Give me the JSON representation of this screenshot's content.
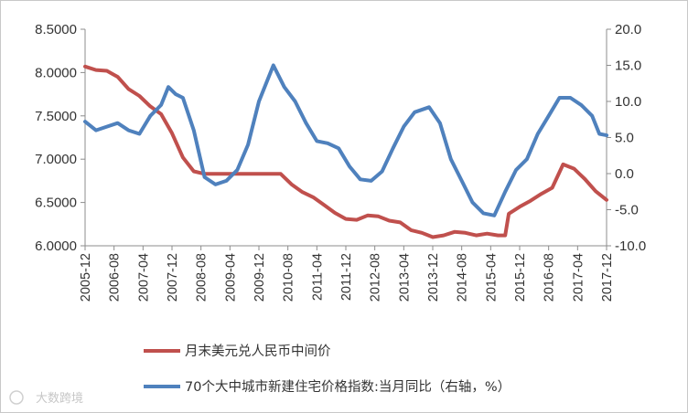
{
  "chart_data": {
    "type": "line",
    "title": "",
    "left_axis": {
      "ylim": [
        6.0,
        8.5
      ],
      "ticks": [
        "6.0000",
        "6.5000",
        "7.0000",
        "7.5000",
        "8.0000",
        "8.5000"
      ]
    },
    "right_axis": {
      "ylim": [
        -10.0,
        20.0
      ],
      "ticks": [
        "-10.0",
        "-5.0",
        "0.0",
        "5.0",
        "10.0",
        "15.0",
        "20.0"
      ]
    },
    "x_start": "2005-12",
    "x_end": "2017-12",
    "x_ticks": [
      "2005-12",
      "2006-08",
      "2007-04",
      "2007-12",
      "2008-08",
      "2009-04",
      "2009-12",
      "2010-08",
      "2011-04",
      "2011-12",
      "2012-08",
      "2013-04",
      "2013-12",
      "2014-08",
      "2015-04",
      "2015-12",
      "2016-08",
      "2017-04",
      "2017-12"
    ],
    "grid": false,
    "legend_position": "bottom",
    "series": [
      {
        "name": "月末美元兑人民币中间价",
        "axis": "left",
        "color": "#c0504d",
        "points": [
          [
            "2005-12",
            8.07
          ],
          [
            "2006-03",
            8.03
          ],
          [
            "2006-06",
            8.02
          ],
          [
            "2006-09",
            7.95
          ],
          [
            "2006-12",
            7.81
          ],
          [
            "2007-03",
            7.73
          ],
          [
            "2007-06",
            7.61
          ],
          [
            "2007-09",
            7.52
          ],
          [
            "2007-12",
            7.3
          ],
          [
            "2008-03",
            7.02
          ],
          [
            "2008-06",
            6.86
          ],
          [
            "2008-09",
            6.83
          ],
          [
            "2008-12",
            6.83
          ],
          [
            "2009-06",
            6.83
          ],
          [
            "2009-12",
            6.83
          ],
          [
            "2010-06",
            6.83
          ],
          [
            "2010-09",
            6.71
          ],
          [
            "2010-12",
            6.62
          ],
          [
            "2011-03",
            6.56
          ],
          [
            "2011-06",
            6.47
          ],
          [
            "2011-09",
            6.38
          ],
          [
            "2011-12",
            6.31
          ],
          [
            "2012-03",
            6.3
          ],
          [
            "2012-06",
            6.35
          ],
          [
            "2012-09",
            6.34
          ],
          [
            "2012-12",
            6.29
          ],
          [
            "2013-03",
            6.27
          ],
          [
            "2013-06",
            6.18
          ],
          [
            "2013-09",
            6.15
          ],
          [
            "2013-12",
            6.1
          ],
          [
            "2014-03",
            6.12
          ],
          [
            "2014-06",
            6.16
          ],
          [
            "2014-09",
            6.15
          ],
          [
            "2014-12",
            6.12
          ],
          [
            "2015-03",
            6.14
          ],
          [
            "2015-06",
            6.12
          ],
          [
            "2015-08",
            6.12
          ],
          [
            "2015-09",
            6.37
          ],
          [
            "2015-12",
            6.45
          ],
          [
            "2016-03",
            6.52
          ],
          [
            "2016-06",
            6.6
          ],
          [
            "2016-09",
            6.67
          ],
          [
            "2016-12",
            6.94
          ],
          [
            "2017-03",
            6.89
          ],
          [
            "2017-06",
            6.77
          ],
          [
            "2017-09",
            6.63
          ],
          [
            "2017-12",
            6.53
          ]
        ]
      },
      {
        "name": "70个大中城市新建住宅价格指数:当月同比（右轴，%）",
        "axis": "right",
        "color": "#4f81bd",
        "points": [
          [
            "2005-12",
            7.2
          ],
          [
            "2006-03",
            6.0
          ],
          [
            "2006-06",
            6.5
          ],
          [
            "2006-09",
            7.0
          ],
          [
            "2006-12",
            6.0
          ],
          [
            "2007-03",
            5.5
          ],
          [
            "2007-06",
            8.0
          ],
          [
            "2007-09",
            9.5
          ],
          [
            "2007-11",
            12.0
          ],
          [
            "2008-01",
            11.0
          ],
          [
            "2008-03",
            10.5
          ],
          [
            "2008-06",
            6.0
          ],
          [
            "2008-09",
            -0.5
          ],
          [
            "2008-12",
            -1.5
          ],
          [
            "2009-03",
            -1.0
          ],
          [
            "2009-06",
            0.5
          ],
          [
            "2009-09",
            4.0
          ],
          [
            "2009-12",
            10.0
          ],
          [
            "2010-04",
            15.0
          ],
          [
            "2010-07",
            12.0
          ],
          [
            "2010-10",
            10.0
          ],
          [
            "2011-01",
            7.0
          ],
          [
            "2011-04",
            4.5
          ],
          [
            "2011-07",
            4.2
          ],
          [
            "2011-10",
            3.5
          ],
          [
            "2012-01",
            1.0
          ],
          [
            "2012-04",
            -0.8
          ],
          [
            "2012-07",
            -1.0
          ],
          [
            "2012-10",
            0.3
          ],
          [
            "2013-01",
            3.5
          ],
          [
            "2013-04",
            6.5
          ],
          [
            "2013-07",
            8.5
          ],
          [
            "2013-11",
            9.2
          ],
          [
            "2014-02",
            7.0
          ],
          [
            "2014-05",
            2.0
          ],
          [
            "2014-08",
            -1.0
          ],
          [
            "2014-11",
            -4.0
          ],
          [
            "2015-02",
            -5.5
          ],
          [
            "2015-05",
            -5.8
          ],
          [
            "2015-08",
            -2.5
          ],
          [
            "2015-11",
            0.5
          ],
          [
            "2016-02",
            2.0
          ],
          [
            "2016-05",
            5.5
          ],
          [
            "2016-08",
            8.0
          ],
          [
            "2016-11",
            10.5
          ],
          [
            "2017-02",
            10.5
          ],
          [
            "2017-05",
            9.5
          ],
          [
            "2017-08",
            8.0
          ],
          [
            "2017-10",
            5.5
          ],
          [
            "2017-12",
            5.3
          ]
        ]
      }
    ]
  },
  "watermark": "大数跨境"
}
